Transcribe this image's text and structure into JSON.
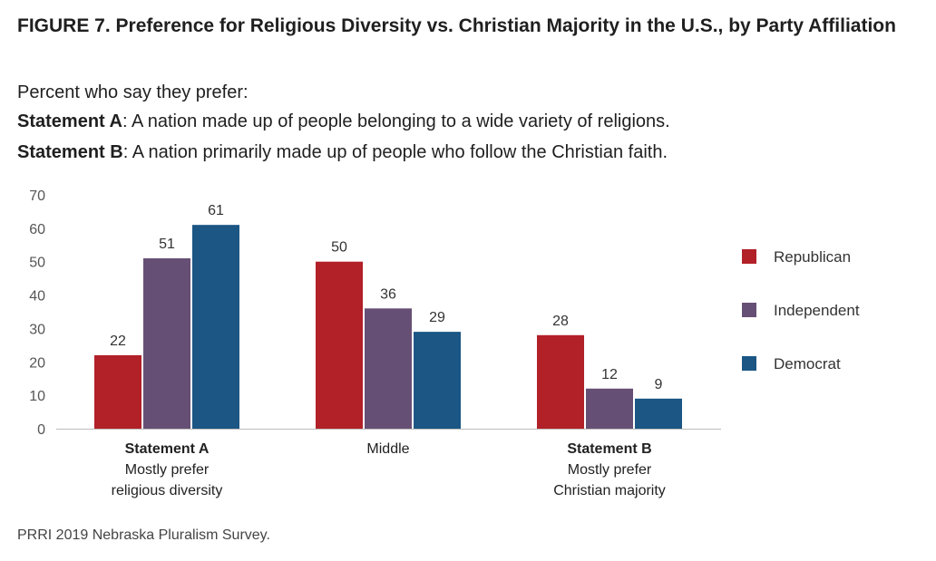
{
  "header": {
    "title": "FIGURE 7. Preference for Religious Diversity vs. Christian Majority in the U.S., by Party Affiliation",
    "subtitle": "Percent who say they prefer:",
    "statement_a_label": "Statement A",
    "statement_a_text": ": A nation made up of people belonging to a wide variety of religions.",
    "statement_b_label": "Statement B",
    "statement_b_text": ": A nation primarily made up of people who follow the Christian faith."
  },
  "source": "PRRI 2019 Nebraska Pluralism Survey.",
  "chart_data": {
    "type": "bar",
    "categories": [
      {
        "bold": "Statement A",
        "lines": [
          "Mostly prefer",
          "religious diversity"
        ]
      },
      {
        "bold": "",
        "lines": [
          "Middle"
        ]
      },
      {
        "bold": "Statement B",
        "lines": [
          "Mostly prefer",
          "Christian majority"
        ]
      }
    ],
    "series": [
      {
        "name": "Republican",
        "color": "#b22028",
        "values": [
          22,
          50,
          28
        ]
      },
      {
        "name": "Independent",
        "color": "#664f74",
        "values": [
          51,
          36,
          12
        ]
      },
      {
        "name": "Democrat",
        "color": "#1b5684",
        "values": [
          61,
          29,
          9
        ]
      }
    ],
    "yticks": [
      0,
      10,
      20,
      30,
      40,
      50,
      60,
      70
    ],
    "ylim": [
      0,
      70
    ],
    "legend_position": "right",
    "grid": false
  }
}
